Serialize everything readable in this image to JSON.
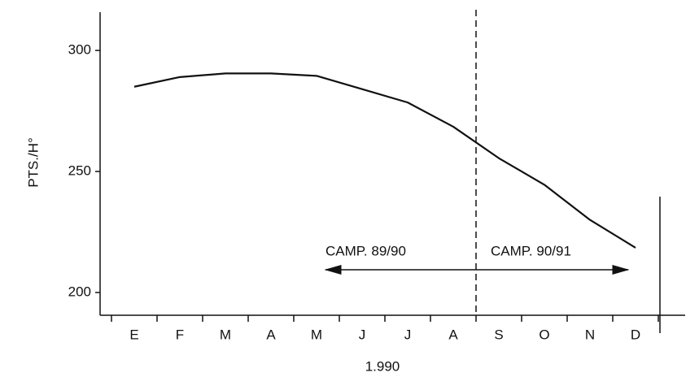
{
  "chart_data": {
    "type": "line",
    "x_label": "1.990",
    "y_label": "PTS./H°",
    "categories": [
      "E",
      "F",
      "M",
      "A",
      "M",
      "J",
      "J",
      "A",
      "S",
      "O",
      "N",
      "D"
    ],
    "values": [
      285,
      289,
      290.5,
      290.5,
      289.5,
      284,
      278.5,
      268.5,
      255.5,
      244.5,
      230,
      218.5
    ],
    "color": "#111111",
    "ylim": [
      190.6,
      315.8
    ],
    "yticks": [
      200,
      250,
      300
    ],
    "grid": false,
    "annotations": [
      "CAMP. 89/90",
      "CAMP. 90/91"
    ]
  }
}
